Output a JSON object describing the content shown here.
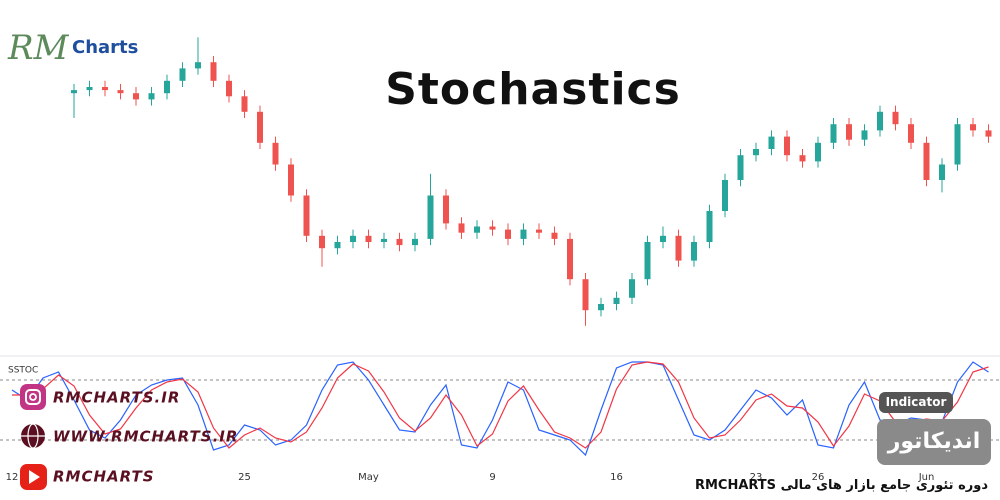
{
  "logo": {
    "script": "RM",
    "text": "Charts"
  },
  "title": "Stochastics",
  "social": {
    "instagram": "RMCHARTS.IR",
    "website": "WWW.RMCHARTS.IR",
    "youtube": "RMCHARTS"
  },
  "badges": {
    "english": "Indicator",
    "persian": "اندیکاتور"
  },
  "footer": "دوره تئوری جامع بازار های مالی RMCHARTS",
  "chart_data": [
    {
      "type": "candlestick",
      "categories": [
        "12",
        null,
        null,
        null,
        null,
        null,
        null,
        null,
        null,
        null,
        null,
        null,
        null,
        null,
        null,
        "25",
        null,
        null,
        null,
        null,
        null,
        null,
        null,
        "May",
        null,
        null,
        null,
        null,
        null,
        null,
        null,
        "9",
        null,
        null,
        null,
        null,
        null,
        null,
        null,
        "16",
        null,
        null,
        null,
        null,
        null,
        null,
        null,
        null,
        "23",
        null,
        null,
        null,
        "26",
        null,
        null,
        null,
        null,
        null,
        null,
        "Jun",
        null,
        null,
        null,
        null
      ],
      "open": [
        null,
        null,
        null,
        null,
        78,
        79,
        80,
        79,
        78,
        76,
        78,
        82,
        86,
        88,
        82,
        77,
        72,
        62,
        55,
        45,
        32,
        28,
        30,
        32,
        30,
        31,
        29,
        31,
        45,
        36,
        33,
        35,
        34,
        31,
        34,
        33,
        31,
        18,
        8,
        10,
        12,
        18,
        30,
        32,
        24,
        30,
        40,
        50,
        58,
        60,
        64,
        58,
        56,
        62,
        68,
        63,
        66,
        72,
        68,
        62,
        50,
        55,
        68,
        66
      ],
      "high": [
        null,
        null,
        null,
        null,
        81,
        82,
        82,
        81,
        80,
        80,
        84,
        88,
        96,
        90,
        84,
        79,
        74,
        64,
        57,
        47,
        34,
        32,
        34,
        34,
        33,
        33,
        33,
        52,
        47,
        38,
        37,
        37,
        36,
        36,
        36,
        35,
        33,
        20,
        12,
        14,
        20,
        32,
        35,
        34,
        32,
        42,
        52,
        60,
        62,
        66,
        66,
        60,
        64,
        70,
        70,
        68,
        74,
        74,
        70,
        64,
        57,
        70,
        70,
        68
      ],
      "low": [
        null,
        null,
        null,
        null,
        70,
        77,
        77,
        76,
        74,
        74,
        76,
        80,
        84,
        80,
        75,
        70,
        60,
        53,
        43,
        30,
        22,
        26,
        28,
        28,
        28,
        27,
        27,
        29,
        34,
        31,
        31,
        32,
        29,
        29,
        31,
        29,
        16,
        3,
        6,
        8,
        10,
        16,
        28,
        22,
        22,
        28,
        38,
        48,
        56,
        58,
        56,
        54,
        54,
        60,
        61,
        61,
        64,
        66,
        60,
        48,
        46,
        53,
        64,
        62
      ],
      "close": [
        null,
        null,
        null,
        null,
        79,
        80,
        79,
        78,
        76,
        78,
        82,
        86,
        88,
        82,
        77,
        72,
        62,
        55,
        45,
        32,
        28,
        30,
        32,
        30,
        31,
        29,
        31,
        45,
        36,
        33,
        35,
        34,
        31,
        34,
        33,
        31,
        18,
        8,
        10,
        12,
        18,
        30,
        32,
        24,
        30,
        40,
        50,
        58,
        60,
        64,
        58,
        56,
        62,
        68,
        63,
        66,
        72,
        68,
        62,
        50,
        55,
        68,
        66,
        64
      ],
      "up_color": "#26a69a",
      "down_color": "#ef5350",
      "ylim": [
        0,
        100
      ]
    },
    {
      "type": "line",
      "label": "SSTOC",
      "ylim": [
        0,
        100
      ],
      "levels": [
        80,
        20
      ],
      "series": [
        {
          "color": "#2962ff",
          "values": [
            70,
            60,
            82,
            88,
            60,
            30,
            22,
            40,
            65,
            75,
            80,
            82,
            55,
            10,
            15,
            35,
            30,
            15,
            20,
            35,
            70,
            95,
            98,
            80,
            55,
            30,
            28,
            55,
            75,
            15,
            12,
            40,
            78,
            70,
            30,
            25,
            20,
            5,
            50,
            92,
            98,
            98,
            95,
            60,
            25,
            20,
            30,
            50,
            70,
            62,
            45,
            60,
            15,
            12,
            55,
            78,
            40,
            35,
            42,
            40,
            38,
            78,
            98,
            88
          ]
        },
        {
          "color": "#f23645",
          "values": [
            65,
            65,
            71,
            85,
            74,
            45,
            26,
            31,
            52,
            70,
            78,
            81,
            68,
            32,
            12,
            25,
            32,
            22,
            18,
            28,
            52,
            82,
            96,
            89,
            68,
            42,
            29,
            42,
            65,
            45,
            14,
            26,
            59,
            74,
            50,
            28,
            22,
            12,
            28,
            71,
            95,
            98,
            96,
            78,
            42,
            22,
            25,
            40,
            60,
            66,
            54,
            52,
            38,
            14,
            34,
            66,
            59,
            38,
            38,
            41,
            39,
            58,
            88,
            93
          ]
        }
      ]
    }
  ]
}
